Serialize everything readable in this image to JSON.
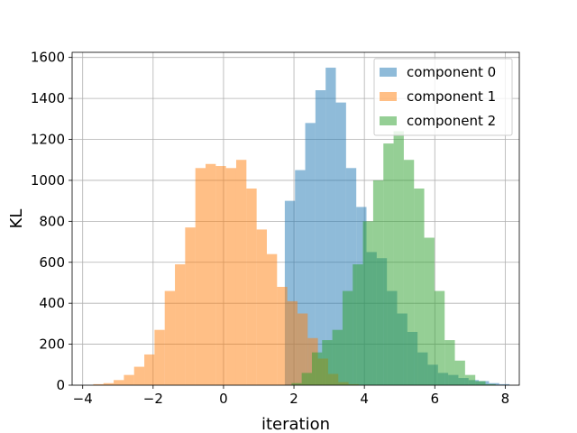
{
  "chart_data": {
    "type": "bar",
    "subtype": "histogram",
    "xlabel": "iteration",
    "ylabel": "KL",
    "xlim": [
      -4.3,
      8.4
    ],
    "ylim": [
      0,
      1625
    ],
    "xticks": [
      -4,
      -2,
      0,
      2,
      4,
      6,
      8
    ],
    "yticks": [
      0,
      200,
      400,
      600,
      800,
      1000,
      1200,
      1400,
      1600
    ],
    "grid": true,
    "legend_position": "top-right",
    "series": [
      {
        "name": "component 0",
        "color": "#1f77b4",
        "opacity": 0.5,
        "bin_width": 0.29,
        "bin_start": 1.74,
        "values": [
          900,
          1050,
          1280,
          1440,
          1550,
          1380,
          1060,
          870,
          650,
          620,
          460,
          350,
          260,
          160,
          100,
          60,
          50,
          35,
          25,
          20,
          10,
          5
        ]
      },
      {
        "name": "component 1",
        "color": "#ff7f0e",
        "opacity": 0.5,
        "bin_width": 0.29,
        "bin_start": -3.7,
        "values": [
          5,
          10,
          25,
          50,
          90,
          150,
          270,
          460,
          590,
          770,
          1060,
          1080,
          1070,
          1060,
          1100,
          960,
          760,
          640,
          480,
          410,
          350,
          230,
          130,
          55,
          15,
          5
        ]
      },
      {
        "name": "component 2",
        "color": "#2ca02c",
        "opacity": 0.5,
        "bin_width": 0.29,
        "bin_start": 1.93,
        "values": [
          10,
          60,
          160,
          220,
          270,
          460,
          590,
          800,
          1000,
          1180,
          1240,
          1100,
          960,
          720,
          460,
          220,
          120,
          50,
          20,
          5
        ]
      }
    ]
  }
}
